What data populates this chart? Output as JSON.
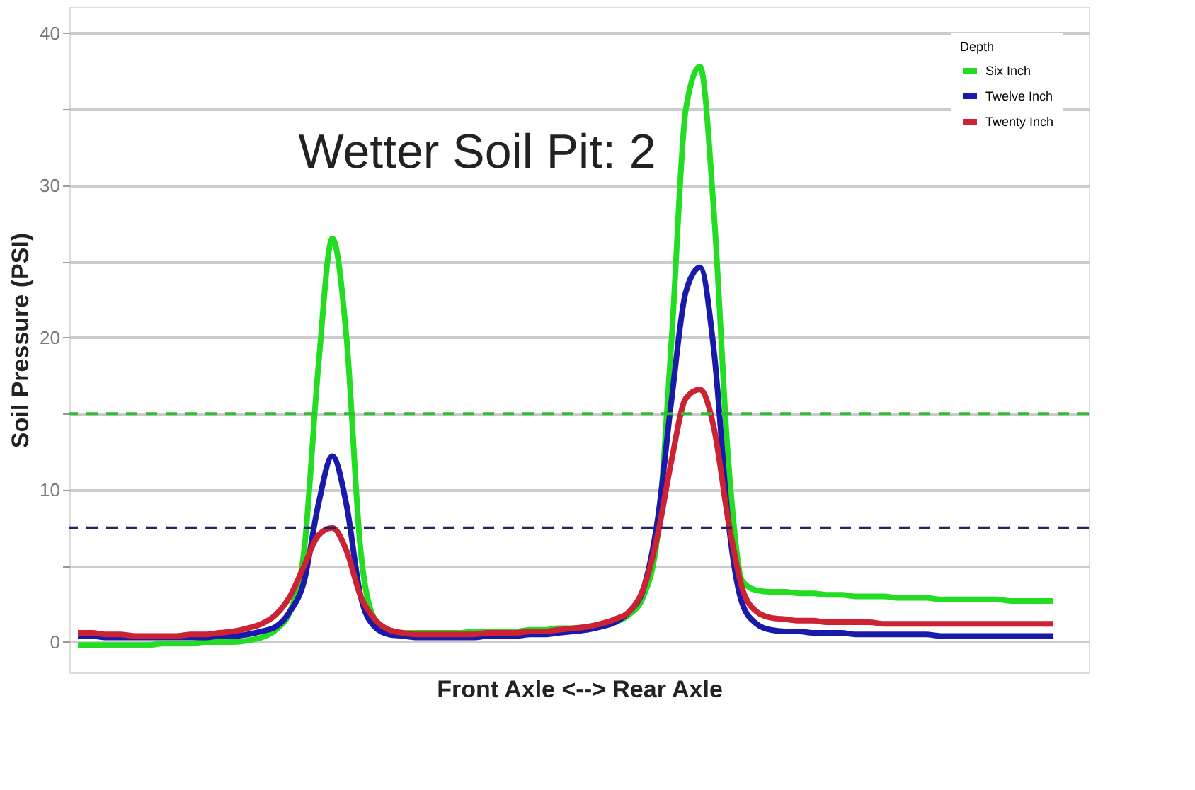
{
  "chart_data": {
    "type": "line",
    "xlabel": "Front Axle <--> Rear Axle",
    "ylabel": "Soil Pressure (PSI)",
    "legend_title": "Depth",
    "legend": "top right",
    "grid": "y",
    "line_style": "solid",
    "marker": "none",
    "categories": [
      null,
      null,
      null,
      null,
      null,
      null,
      null,
      null,
      null,
      null,
      null,
      null,
      null,
      null,
      null,
      null,
      null,
      null,
      null,
      null,
      null,
      null,
      null,
      null,
      null,
      null,
      null,
      null,
      null,
      null,
      null,
      null,
      null,
      null,
      null,
      null,
      null,
      null,
      null,
      null,
      null,
      null,
      null,
      null,
      null,
      null,
      null,
      null,
      null,
      null,
      null,
      null,
      null,
      null,
      null,
      null,
      null,
      null,
      null,
      null,
      null,
      null,
      null,
      null,
      null,
      null,
      null,
      null,
      null,
      null
    ],
    "ylim": [
      -2,
      41.7
    ],
    "yticks": [
      0,
      {
        "value": 5,
        "label": null
      },
      10,
      {
        "value": 15,
        "label": null
      },
      20,
      {
        "value": 25,
        "label": null
      },
      30,
      {
        "value": 35,
        "label": null
      },
      40
    ],
    "series": [
      {
        "name": "Six Inch",
        "color": "#22dd22",
        "values": [
          -0.2,
          -0.2,
          -0.2,
          -0.2,
          -0.2,
          -0.2,
          -0.1,
          -0.1,
          -0.1,
          0,
          0,
          0,
          0.1,
          0.3,
          0.8,
          2,
          6,
          18,
          26.5,
          20,
          6,
          1.5,
          0.8,
          0.6,
          0.6,
          0.6,
          0.6,
          0.6,
          0.7,
          0.7,
          0.7,
          0.7,
          0.8,
          0.8,
          0.9,
          0.9,
          1,
          1.1,
          1.3,
          1.8,
          3,
          7,
          20,
          35,
          37.8,
          28,
          12,
          4,
          3.4,
          3.3,
          3.3,
          3.2,
          3.2,
          3.1,
          3.1,
          3,
          3,
          3,
          2.9,
          2.9,
          2.9,
          2.8,
          2.8,
          2.8,
          2.8,
          2.8,
          2.7,
          2.7,
          2.7,
          2.7
        ]
      },
      {
        "name": "Twelve Inch",
        "color": "#1a1aaa",
        "values": [
          0.4,
          0.4,
          0.3,
          0.3,
          0.3,
          0.3,
          0.3,
          0.3,
          0.3,
          0.3,
          0.4,
          0.4,
          0.5,
          0.7,
          1,
          2,
          4,
          9,
          12.2,
          9,
          3,
          1,
          0.5,
          0.4,
          0.3,
          0.3,
          0.3,
          0.3,
          0.3,
          0.4,
          0.4,
          0.4,
          0.5,
          0.5,
          0.6,
          0.7,
          0.8,
          1,
          1.3,
          2,
          3.5,
          8,
          16,
          23,
          24.6,
          19,
          8,
          2.5,
          1.2,
          0.8,
          0.7,
          0.7,
          0.6,
          0.6,
          0.6,
          0.5,
          0.5,
          0.5,
          0.5,
          0.5,
          0.5,
          0.4,
          0.4,
          0.4,
          0.4,
          0.4,
          0.4,
          0.4,
          0.4,
          0.4
        ]
      },
      {
        "name": "Twenty Inch",
        "color": "#cc2233",
        "values": [
          0.6,
          0.6,
          0.5,
          0.5,
          0.4,
          0.4,
          0.4,
          0.4,
          0.5,
          0.5,
          0.6,
          0.7,
          0.9,
          1.2,
          1.8,
          3,
          5,
          7,
          7.5,
          6,
          3,
          1.5,
          0.8,
          0.6,
          0.5,
          0.5,
          0.5,
          0.5,
          0.5,
          0.6,
          0.6,
          0.6,
          0.7,
          0.7,
          0.8,
          0.9,
          1,
          1.2,
          1.5,
          2,
          3.5,
          7,
          12,
          16,
          16.6,
          14,
          8,
          3.5,
          2,
          1.6,
          1.5,
          1.4,
          1.4,
          1.3,
          1.3,
          1.3,
          1.3,
          1.2,
          1.2,
          1.2,
          1.2,
          1.2,
          1.2,
          1.2,
          1.2,
          1.2,
          1.2,
          1.2,
          1.2,
          1.2
        ]
      }
    ],
    "ref_lines": [
      {
        "axis": "y",
        "value": 15,
        "label": null,
        "color": "#33bb33",
        "line_style": "dashed"
      },
      {
        "axis": "y",
        "value": 7.5,
        "label": null,
        "color": "#222266",
        "line_style": "dashed"
      }
    ],
    "annotations": [
      "Wetter Soil Pit: 2"
    ]
  }
}
